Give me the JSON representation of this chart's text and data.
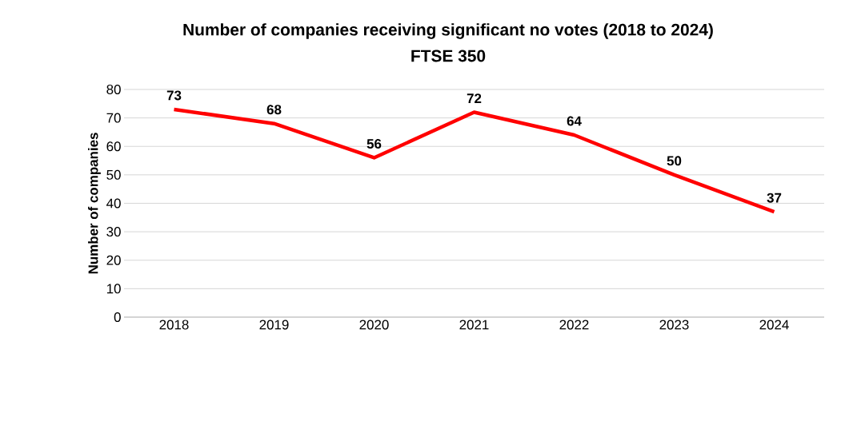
{
  "chart_data": {
    "type": "line",
    "title": "Number of companies receiving significant no votes (2018 to 2024)",
    "subtitle": "FTSE 350",
    "ylabel": "Number of companies",
    "categories": [
      "2018",
      "2019",
      "2020",
      "2021",
      "2022",
      "2023",
      "2024"
    ],
    "series": [
      {
        "color": "#ff0000",
        "values": [
          73,
          68,
          56,
          72,
          64,
          50,
          37
        ]
      }
    ],
    "ylim": [
      0,
      80
    ],
    "yticks": [
      0,
      10,
      20,
      30,
      40,
      50,
      60,
      70,
      80
    ],
    "grid": "y",
    "data_labels": true,
    "marker": "none",
    "line_style": "solid"
  }
}
